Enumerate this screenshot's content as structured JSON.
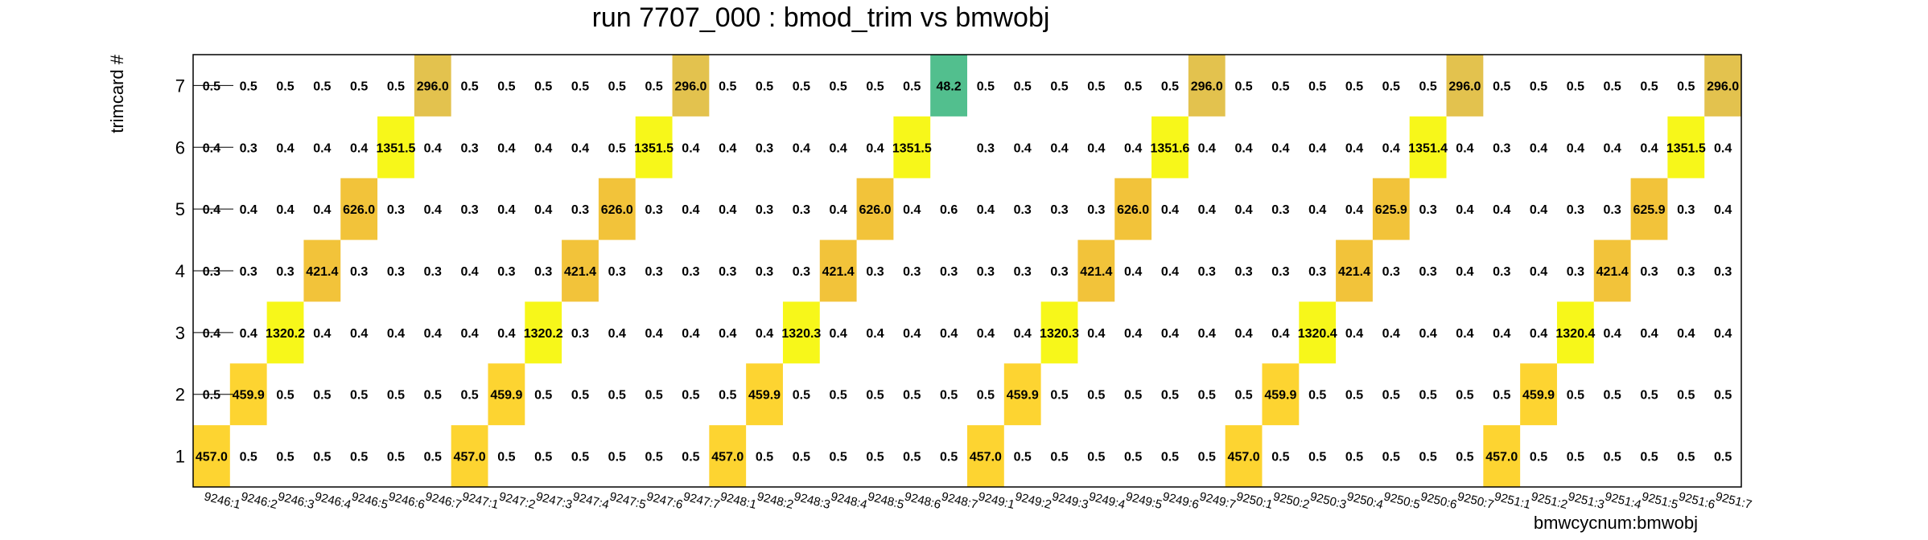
{
  "chart_data": {
    "type": "heatmap",
    "title": "run 7707_000 : bmod_trim vs bmwobj",
    "xlabel": "bmwcycnum:bmwobj",
    "ylabel": "trimcard #",
    "x": [
      "9246:1",
      "9246:2",
      "9246:3",
      "9246:4",
      "9246:5",
      "9246:6",
      "9246:7",
      "9247:1",
      "9247:2",
      "9247:3",
      "9247:4",
      "9247:5",
      "9247:6",
      "9247:7",
      "9248:1",
      "9248:2",
      "9248:3",
      "9248:4",
      "9248:5",
      "9248:6",
      "9248:7",
      "9249:1",
      "9249:2",
      "9249:3",
      "9249:4",
      "9249:5",
      "9249:6",
      "9249:7",
      "9250:1",
      "9250:2",
      "9250:3",
      "9250:4",
      "9250:5",
      "9250:6",
      "9250:7",
      "9251:1",
      "9251:2",
      "9251:3",
      "9251:4",
      "9251:5",
      "9251:6",
      "9251:7"
    ],
    "y": [
      "1",
      "2",
      "3",
      "4",
      "5",
      "6",
      "7"
    ],
    "colors": {
      "457": "#fdd431",
      "460": "#fdd431",
      "1320": "#f7f71a",
      "421": "#f2c33a",
      "626": "#f2c33a",
      "1351": "#f7f71a",
      "296": "#e3c24e",
      "48": "#52bf8e"
    },
    "values": [
      [
        "457.0",
        "0.5",
        "0.5",
        "0.5",
        "0.5",
        "0.5",
        "0.5",
        "457.0",
        "0.5",
        "0.5",
        "0.5",
        "0.5",
        "0.5",
        "0.5",
        "457.0",
        "0.5",
        "0.5",
        "0.5",
        "0.5",
        "0.5",
        "0.5",
        "457.0",
        "0.5",
        "0.5",
        "0.5",
        "0.5",
        "0.5",
        "0.5",
        "457.0",
        "0.5",
        "0.5",
        "0.5",
        "0.5",
        "0.5",
        "0.5",
        "457.0",
        "0.5",
        "0.5",
        "0.5",
        "0.5",
        "0.5",
        "0.5"
      ],
      [
        "0.5",
        "459.9",
        "0.5",
        "0.5",
        "0.5",
        "0.5",
        "0.5",
        "0.5",
        "459.9",
        "0.5",
        "0.5",
        "0.5",
        "0.5",
        "0.5",
        "0.5",
        "459.9",
        "0.5",
        "0.5",
        "0.5",
        "0.5",
        "0.5",
        "0.5",
        "459.9",
        "0.5",
        "0.5",
        "0.5",
        "0.5",
        "0.5",
        "0.5",
        "459.9",
        "0.5",
        "0.5",
        "0.5",
        "0.5",
        "0.5",
        "0.5",
        "459.9",
        "0.5",
        "0.5",
        "0.5",
        "0.5",
        "0.5"
      ],
      [
        "0.4",
        "0.4",
        "1320.2",
        "0.4",
        "0.4",
        "0.4",
        "0.4",
        "0.4",
        "0.4",
        "1320.2",
        "0.3",
        "0.4",
        "0.4",
        "0.4",
        "0.4",
        "0.4",
        "1320.3",
        "0.4",
        "0.4",
        "0.4",
        "0.4",
        "0.4",
        "0.4",
        "1320.3",
        "0.4",
        "0.4",
        "0.4",
        "0.4",
        "0.4",
        "0.4",
        "1320.4",
        "0.4",
        "0.4",
        "0.4",
        "0.4",
        "0.4",
        "0.4",
        "1320.4",
        "0.4",
        "0.4",
        "0.4",
        "0.4"
      ],
      [
        "0.3",
        "0.3",
        "0.3",
        "421.4",
        "0.3",
        "0.3",
        "0.3",
        "0.4",
        "0.3",
        "0.3",
        "421.4",
        "0.3",
        "0.3",
        "0.3",
        "0.3",
        "0.3",
        "0.3",
        "421.4",
        "0.3",
        "0.3",
        "0.3",
        "0.3",
        "0.3",
        "0.3",
        "421.4",
        "0.4",
        "0.4",
        "0.3",
        "0.3",
        "0.3",
        "0.3",
        "421.4",
        "0.3",
        "0.3",
        "0.4",
        "0.3",
        "0.4",
        "0.3",
        "421.4",
        "0.3",
        "0.3",
        "0.3"
      ],
      [
        "0.4",
        "0.4",
        "0.4",
        "0.4",
        "626.0",
        "0.3",
        "0.4",
        "0.3",
        "0.4",
        "0.4",
        "0.3",
        "626.0",
        "0.3",
        "0.4",
        "0.4",
        "0.3",
        "0.3",
        "0.4",
        "626.0",
        "0.4",
        "0.6",
        "0.4",
        "0.3",
        "0.3",
        "0.3",
        "626.0",
        "0.4",
        "0.4",
        "0.4",
        "0.3",
        "0.4",
        "0.4",
        "625.9",
        "0.3",
        "0.4",
        "0.4",
        "0.4",
        "0.3",
        "0.3",
        "625.9",
        "0.3",
        "0.4"
      ],
      [
        "0.4",
        "0.3",
        "0.4",
        "0.4",
        "0.4",
        "1351.5",
        "0.4",
        "0.3",
        "0.4",
        "0.4",
        "0.4",
        "0.5",
        "1351.5",
        "0.4",
        "0.4",
        "0.3",
        "0.4",
        "0.4",
        "0.4",
        "1351.5",
        "",
        "0.3",
        "0.4",
        "0.4",
        "0.4",
        "0.4",
        "1351.6",
        "0.4",
        "0.4",
        "0.4",
        "0.4",
        "0.4",
        "0.4",
        "1351.4",
        "0.4",
        "0.3",
        "0.4",
        "0.4",
        "0.4",
        "0.4",
        "1351.5",
        "0.4"
      ],
      [
        "0.5",
        "0.5",
        "0.5",
        "0.5",
        "0.5",
        "0.5",
        "296.0",
        "0.5",
        "0.5",
        "0.5",
        "0.5",
        "0.5",
        "0.5",
        "296.0",
        "0.5",
        "0.5",
        "0.5",
        "0.5",
        "0.5",
        "0.5",
        "48.2",
        "0.5",
        "0.5",
        "0.5",
        "0.5",
        "0.5",
        "0.5",
        "296.0",
        "0.5",
        "0.5",
        "0.5",
        "0.5",
        "0.5",
        "0.5",
        "296.0",
        "0.5",
        "0.5",
        "0.5",
        "0.5",
        "0.5",
        "0.5",
        "296.0"
      ]
    ]
  }
}
